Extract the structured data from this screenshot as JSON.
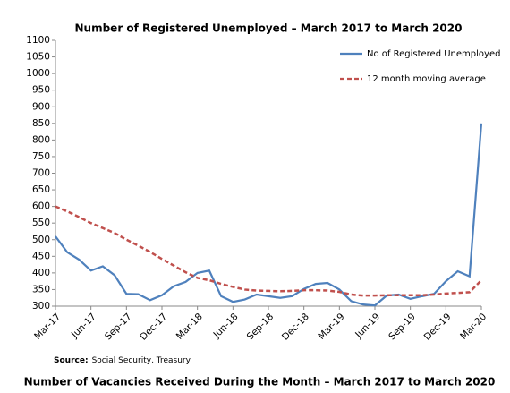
{
  "chart_data": {
    "type": "line",
    "title": "Number of Registered Unemployed – March 2017 to March 2020",
    "categories": [
      "Mar-17",
      null,
      null,
      "Jun-17",
      null,
      null,
      "Sep-17",
      null,
      null,
      "Dec-17",
      null,
      null,
      "Mar-18",
      null,
      null,
      "Jun-18",
      null,
      null,
      "Sep-18",
      null,
      null,
      "Dec-18",
      null,
      null,
      "Mar-19",
      null,
      null,
      "Jun-19",
      null,
      null,
      "Sep-19",
      null,
      null,
      "Dec-19",
      null,
      null,
      "Mar-20"
    ],
    "series": [
      {
        "name": "No of Registered Unemployed",
        "color": "#4f81bd",
        "dash": false,
        "values": [
          510,
          462,
          440,
          407,
          420,
          393,
          337,
          336,
          318,
          333,
          360,
          373,
          400,
          407,
          330,
          313,
          320,
          335,
          330,
          325,
          330,
          352,
          367,
          370,
          350,
          315,
          305,
          302,
          332,
          335,
          322,
          330,
          337,
          375,
          405,
          390,
          850
        ]
      },
      {
        "name": "12 month moving average",
        "color": "#c0504d",
        "dash": true,
        "values": [
          600,
          585,
          568,
          550,
          535,
          520,
          500,
          482,
          463,
          442,
          422,
          402,
          385,
          378,
          367,
          358,
          350,
          347,
          346,
          345,
          346,
          348,
          348,
          347,
          343,
          335,
          332,
          332,
          333,
          333,
          333,
          333,
          335,
          338,
          340,
          342,
          378
        ]
      }
    ],
    "ylim": [
      300,
      1100
    ],
    "yticks": [
      300,
      350,
      400,
      450,
      500,
      550,
      600,
      650,
      700,
      750,
      800,
      850,
      900,
      950,
      1000,
      1050,
      1100
    ],
    "grid": false,
    "legend": "top-right"
  },
  "source_label": "Source:",
  "source": "Social Security, Treasury",
  "next_title": "Number of Vacancies Received During the Month – March 2017 to March 2020"
}
